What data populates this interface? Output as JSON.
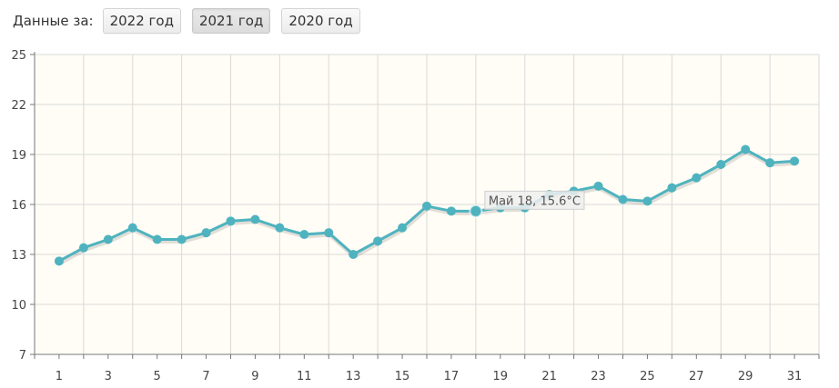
{
  "toolbar": {
    "label": "Данные за:",
    "buttons": [
      {
        "label": "2022 год",
        "active": false
      },
      {
        "label": "2021 год",
        "active": true
      },
      {
        "label": "2020 год",
        "active": false
      }
    ]
  },
  "colors": {
    "line": "#4fb3bf",
    "point": "#4fb3bf",
    "plot_background": "#fffdf5",
    "grid": "#d9d9d9",
    "axis": "#777777"
  },
  "tooltip": {
    "text": "Май 18, 15.6°C",
    "x": 18,
    "y": 15.6
  },
  "chart_data": {
    "type": "line",
    "title": "",
    "xlabel": "",
    "ylabel": "",
    "xlim": [
      0,
      32
    ],
    "ylim": [
      7,
      25
    ],
    "y_ticks": [
      7,
      10,
      13,
      16,
      19,
      22,
      25
    ],
    "x_ticks": [
      1,
      3,
      5,
      7,
      9,
      11,
      13,
      15,
      17,
      19,
      21,
      23,
      25,
      27,
      29,
      31
    ],
    "grid": true,
    "legend": "none",
    "series": [
      {
        "x": [
          1,
          2,
          3,
          4,
          5,
          6,
          7,
          8,
          9,
          10,
          11,
          12,
          13,
          14,
          15,
          16,
          17,
          18,
          19,
          20,
          21,
          22,
          23,
          24,
          25,
          26,
          27,
          28,
          29,
          30,
          31
        ],
        "values": [
          12.6,
          13.4,
          13.9,
          14.6,
          13.9,
          13.9,
          14.3,
          15.0,
          15.1,
          14.6,
          14.2,
          14.3,
          13.0,
          13.8,
          14.6,
          15.9,
          15.6,
          15.6,
          15.8,
          15.8,
          16.6,
          16.8,
          17.1,
          16.3,
          16.2,
          17.0,
          17.6,
          18.4,
          19.3,
          18.5,
          18.6
        ]
      }
    ]
  }
}
